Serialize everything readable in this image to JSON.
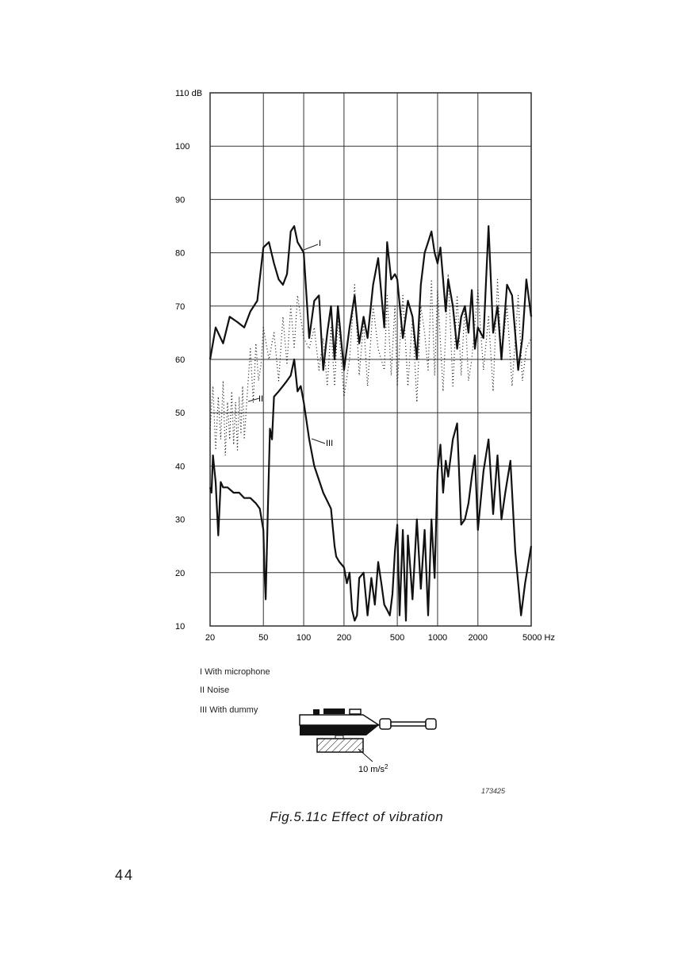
{
  "chart_data": {
    "type": "line",
    "title": "Fig.5.11c  Effect of vibration",
    "xscale": "log",
    "xlim": [
      20,
      5000
    ],
    "ylim": [
      10,
      110
    ],
    "x_ticks": [
      {
        "value": 20,
        "label": "20"
      },
      {
        "value": 50,
        "label": "50"
      },
      {
        "value": 100,
        "label": "100"
      },
      {
        "value": 200,
        "label": "200"
      },
      {
        "value": 500,
        "label": "500"
      },
      {
        "value": 1000,
        "label": "1000"
      },
      {
        "value": 2000,
        "label": "2000"
      },
      {
        "value": 5000,
        "label": "5000 Hz"
      }
    ],
    "y_ticks": [
      {
        "value": 110,
        "label": "110 dB"
      },
      {
        "value": 100,
        "label": "100"
      },
      {
        "value": 90,
        "label": "90"
      },
      {
        "value": 80,
        "label": "80"
      },
      {
        "value": 70,
        "label": "70"
      },
      {
        "value": 60,
        "label": "60"
      },
      {
        "value": 50,
        "label": "50"
      },
      {
        "value": 40,
        "label": "40"
      },
      {
        "value": 30,
        "label": "30"
      },
      {
        "value": 20,
        "label": "20"
      },
      {
        "value": 10,
        "label": "10"
      }
    ],
    "grid": true,
    "series": [
      {
        "name": "I",
        "style": "solid",
        "x": [
          20,
          22,
          25,
          28,
          32,
          36,
          40,
          45,
          50,
          55,
          60,
          65,
          70,
          75,
          80,
          85,
          90,
          95,
          100,
          110,
          120,
          130,
          140,
          150,
          160,
          170,
          180,
          200,
          220,
          240,
          260,
          280,
          300,
          330,
          360,
          400,
          420,
          450,
          480,
          500,
          550,
          600,
          650,
          700,
          750,
          800,
          850,
          900,
          950,
          1000,
          1050,
          1100,
          1150,
          1200,
          1300,
          1400,
          1500,
          1600,
          1700,
          1800,
          1900,
          2000,
          2200,
          2400,
          2600,
          2800,
          3000,
          3300,
          3600,
          4000,
          4300,
          4600,
          5000
        ],
        "y": [
          60,
          66,
          63,
          68,
          67,
          66,
          69,
          71,
          81,
          82,
          78,
          75,
          74,
          76,
          84,
          85,
          82,
          81,
          80,
          64,
          71,
          72,
          58,
          65,
          70,
          60,
          70,
          58,
          66,
          72,
          63,
          68,
          64,
          74,
          79,
          66,
          82,
          75,
          76,
          75,
          64,
          71,
          68,
          60,
          74,
          80,
          82,
          84,
          80,
          78,
          81,
          75,
          69,
          75,
          70,
          62,
          68,
          70,
          65,
          73,
          62,
          66,
          64,
          85,
          65,
          70,
          60,
          74,
          72,
          58,
          64,
          75,
          68
        ]
      },
      {
        "name": "II",
        "style": "dotted",
        "x": [
          20,
          21,
          22,
          23,
          24,
          25,
          26,
          27,
          28,
          29,
          30,
          31,
          32,
          33,
          34,
          35,
          36,
          38,
          40,
          42,
          44,
          46,
          48,
          50,
          55,
          60,
          65,
          70,
          75,
          80,
          85,
          90,
          100,
          110,
          120,
          130,
          140,
          150,
          160,
          170,
          180,
          200,
          220,
          240,
          260,
          280,
          300,
          330,
          360,
          400,
          420,
          450,
          480,
          500,
          550,
          600,
          650,
          700,
          750,
          800,
          850,
          900,
          950,
          1000,
          1100,
          1200,
          1300,
          1400,
          1500,
          1600,
          1700,
          1800,
          2000,
          2200,
          2400,
          2600,
          2800,
          3000,
          3300,
          3600,
          4000,
          4300,
          4600,
          5000
        ],
        "y": [
          47,
          55,
          43,
          53,
          45,
          56,
          42,
          52,
          45,
          54,
          44,
          52,
          43,
          53,
          46,
          55,
          45,
          54,
          62,
          52,
          63,
          56,
          59,
          66,
          60,
          65,
          56,
          68,
          59,
          70,
          62,
          72,
          64,
          62,
          66,
          58,
          64,
          55,
          66,
          55,
          68,
          53,
          60,
          74,
          57,
          67,
          55,
          70,
          62,
          58,
          72,
          57,
          70,
          55,
          72,
          55,
          68,
          52,
          70,
          65,
          58,
          75,
          57,
          73,
          54,
          76,
          55,
          72,
          57,
          70,
          56,
          60,
          73,
          58,
          68,
          54,
          75,
          60,
          70,
          55,
          72,
          56,
          62,
          64
        ]
      },
      {
        "name": "III",
        "style": "solid",
        "x": [
          20,
          20.5,
          21,
          22,
          23,
          24,
          25,
          27,
          30,
          33,
          36,
          40,
          44,
          47,
          50,
          51,
          52,
          54,
          56,
          58,
          60,
          65,
          70,
          75,
          80,
          85,
          90,
          95,
          100,
          110,
          120,
          140,
          160,
          170,
          175,
          185,
          200,
          210,
          220,
          230,
          240,
          250,
          260,
          280,
          300,
          320,
          340,
          360,
          380,
          400,
          420,
          440,
          460,
          480,
          500,
          520,
          550,
          580,
          600,
          650,
          700,
          750,
          800,
          850,
          900,
          950,
          1000,
          1050,
          1100,
          1150,
          1200,
          1300,
          1400,
          1500,
          1600,
          1700,
          1800,
          1900,
          2000,
          2200,
          2400,
          2600,
          2800,
          3000,
          3200,
          3500,
          3800,
          4000,
          4200,
          4500,
          5000
        ],
        "y": [
          36,
          35,
          42,
          37,
          27,
          37,
          36,
          36,
          35,
          35,
          34,
          34,
          33,
          32,
          28,
          20,
          15,
          32,
          47,
          45,
          53,
          54,
          55,
          56,
          57,
          60,
          54,
          55,
          52,
          45,
          40,
          35,
          32,
          25,
          23,
          22,
          21,
          18,
          20,
          13,
          11,
          12,
          19,
          20,
          12,
          19,
          14,
          22,
          18,
          14,
          13,
          12,
          16,
          24,
          29,
          12,
          28,
          11,
          27,
          15,
          30,
          17,
          28,
          12,
          30,
          19,
          39,
          44,
          35,
          41,
          38,
          45,
          48,
          29,
          30,
          33,
          38,
          42,
          28,
          39,
          45,
          31,
          42,
          30,
          35,
          41,
          24,
          18,
          12,
          18,
          25
        ]
      }
    ],
    "legend": {
      "position": "bottom-left",
      "items": [
        "I With microphone",
        "II Noise",
        "III With dummy"
      ]
    },
    "annotations": [
      "I",
      "II",
      "III",
      "10 m/s²"
    ]
  },
  "diagram": {
    "accel_label": "10 m/s",
    "accel_sup": "2"
  },
  "figure_number": "173425",
  "caption": "Fig.5.11c  Effect of vibration",
  "page_number": "44"
}
